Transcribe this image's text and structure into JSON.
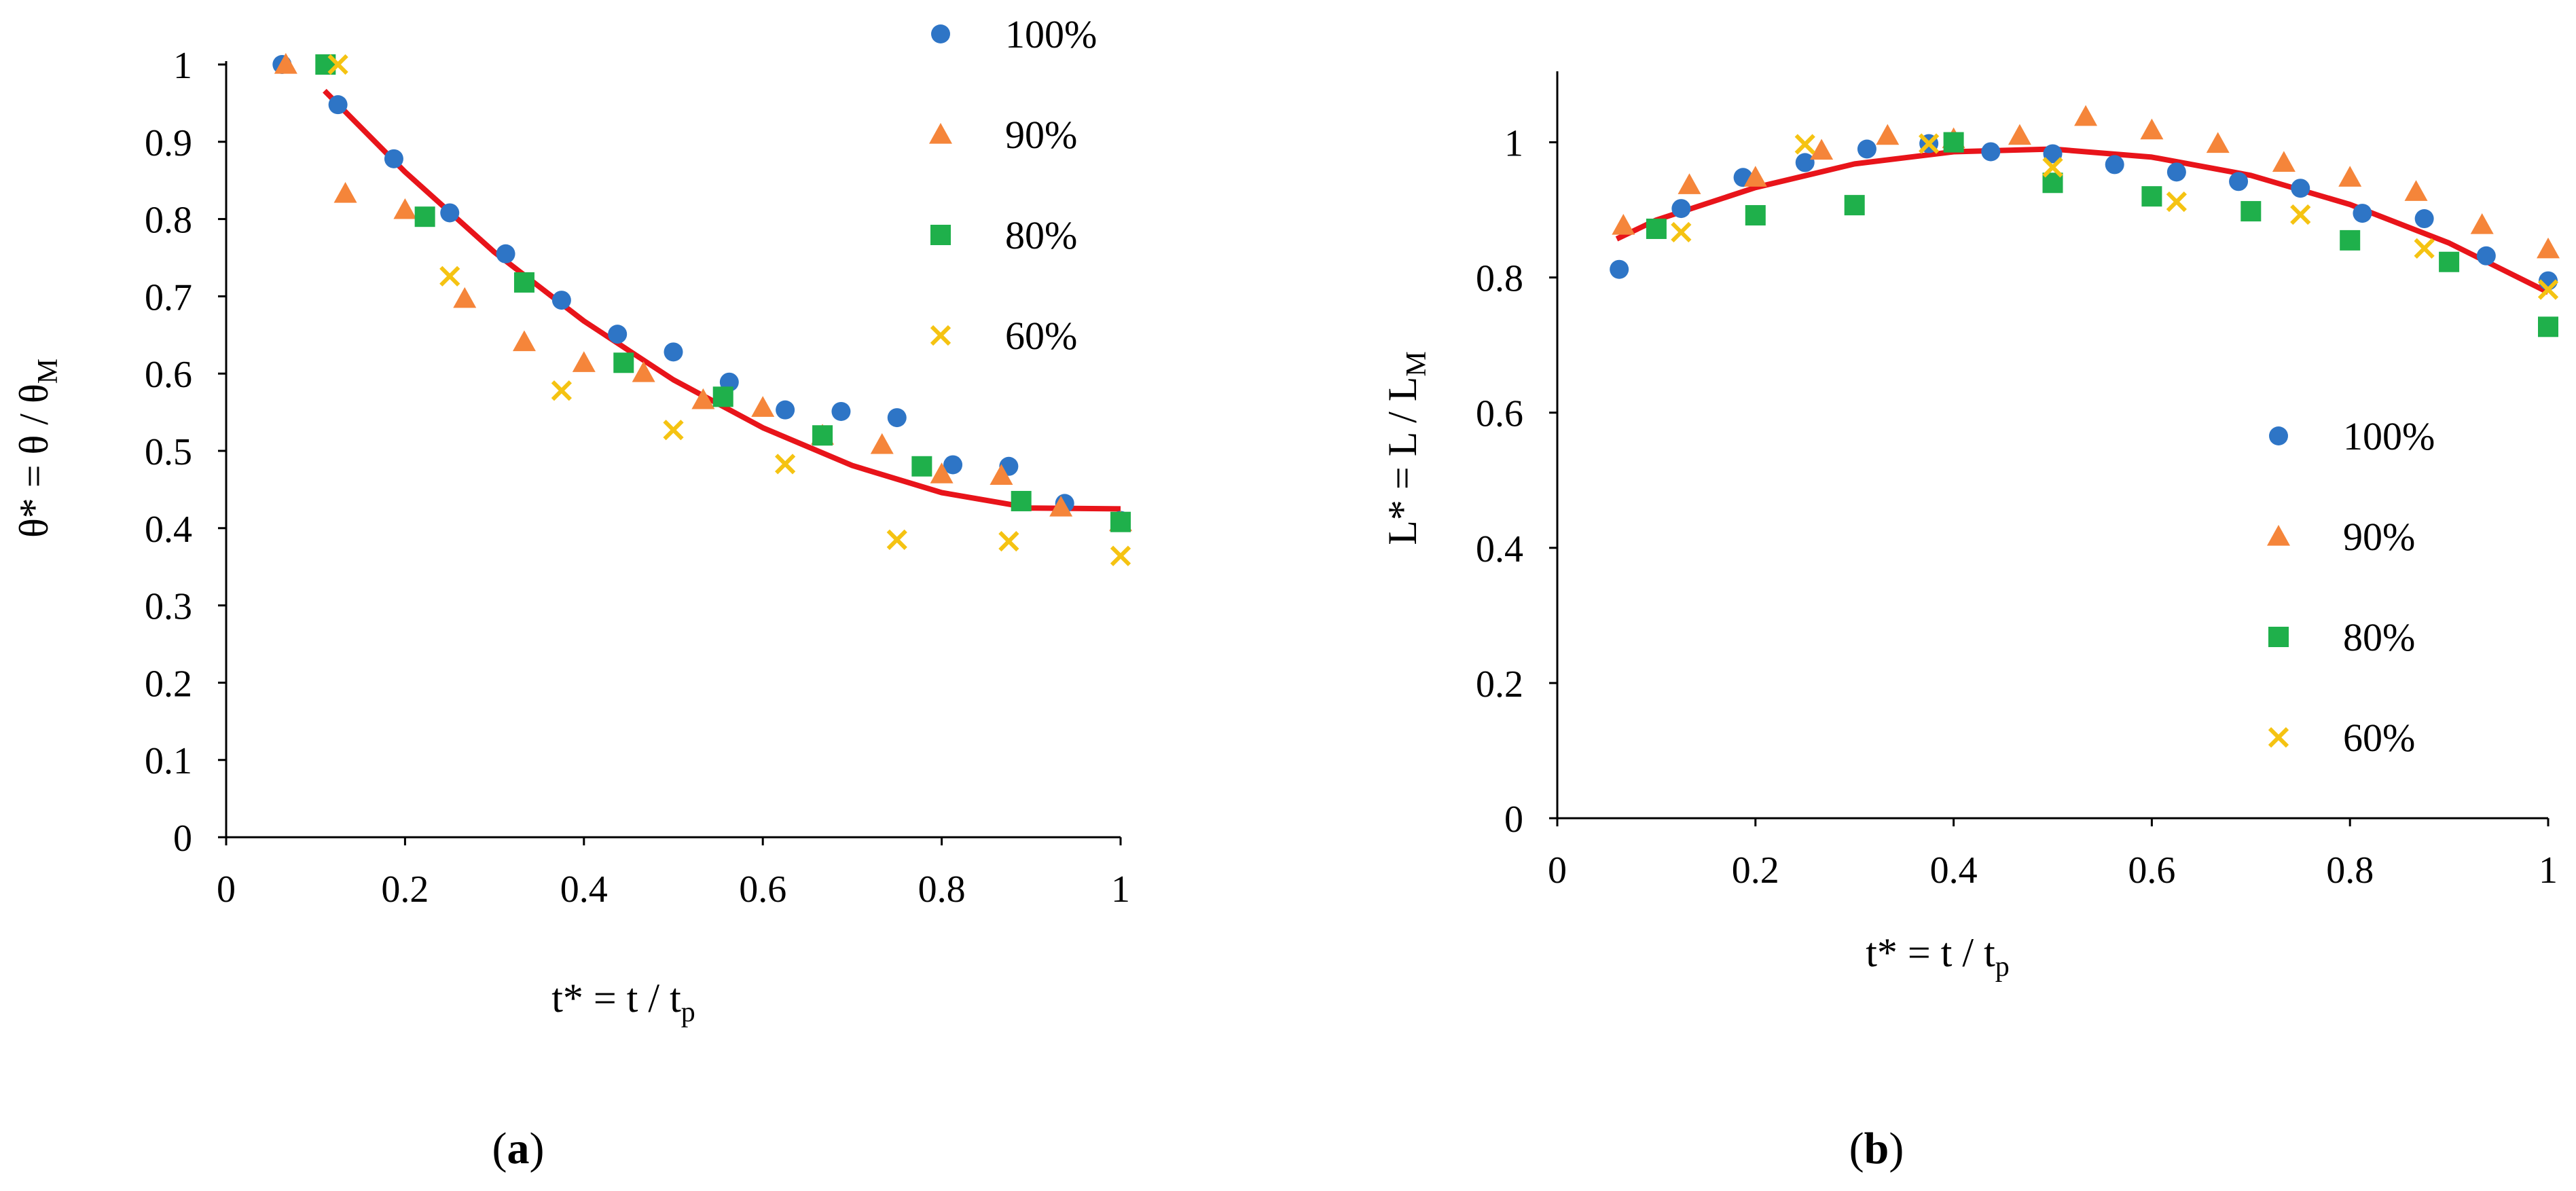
{
  "chart_data": [
    {
      "id": "a",
      "type": "scatter",
      "panel_label": "a",
      "ylabel": "θ* = θ / θ",
      "ylabel_sub": "M",
      "xlabel": "t* = t / t",
      "xlabel_sub": "p",
      "xlim": [
        0,
        1
      ],
      "ylim": [
        0,
        1
      ],
      "xticks": [
        0,
        0.2,
        0.4,
        0.6,
        0.8,
        1
      ],
      "xtick_labels": [
        "0",
        "0.2",
        "0.4",
        "0.6",
        "0.8",
        "1"
      ],
      "yticks": [
        0,
        0.1,
        0.2,
        0.3,
        0.4,
        0.5,
        0.6,
        0.7,
        0.8,
        0.9,
        1
      ],
      "ytick_labels": [
        "0",
        "0.1",
        "0.2",
        "0.3",
        "0.4",
        "0.5",
        "0.6",
        "0.7",
        "0.8",
        "0.9",
        "1"
      ],
      "series": [
        {
          "name": "100%",
          "marker": "circle",
          "color": "#2e75c6",
          "x": [
            0.0625,
            0.125,
            0.1875,
            0.25,
            0.3125,
            0.375,
            0.4375,
            0.5,
            0.5625,
            0.625,
            0.6875,
            0.75,
            0.8125,
            0.875,
            0.9375,
            1.0
          ],
          "y": [
            1.0,
            0.948,
            0.878,
            0.808,
            0.755,
            0.695,
            0.651,
            0.628,
            0.589,
            0.553,
            0.551,
            0.543,
            0.482,
            0.48,
            0.432,
            0.41
          ]
        },
        {
          "name": "90%",
          "marker": "triangle",
          "color": "#f5853a",
          "x": [
            0.0667,
            0.1333,
            0.2,
            0.2667,
            0.3333,
            0.4,
            0.4667,
            0.5333,
            0.6,
            0.6667,
            0.7333,
            0.8,
            0.8667,
            0.9333,
            1.0
          ],
          "y": [
            1.0,
            0.833,
            0.812,
            0.697,
            0.641,
            0.614,
            0.601,
            0.566,
            0.556,
            0.52,
            0.508,
            0.47,
            0.468,
            0.427,
            0.408
          ]
        },
        {
          "name": "80%",
          "marker": "square",
          "color": "#1fb04b",
          "x": [
            0.1111,
            0.2222,
            0.3333,
            0.4444,
            0.5556,
            0.6667,
            0.7778,
            0.8889,
            1.0
          ],
          "y": [
            1.0,
            0.803,
            0.718,
            0.614,
            0.57,
            0.52,
            0.48,
            0.435,
            0.408
          ]
        },
        {
          "name": "60%",
          "marker": "x",
          "color": "#f5c312",
          "x": [
            0.125,
            0.25,
            0.375,
            0.5,
            0.625,
            0.75,
            0.875,
            1.0
          ],
          "y": [
            1.0,
            0.726,
            0.578,
            0.527,
            0.483,
            0.385,
            0.383,
            0.364
          ]
        }
      ],
      "fit": {
        "name": "fit",
        "color": "#e8141a",
        "x": [
          0.11,
          0.2,
          0.3,
          0.4,
          0.5,
          0.6,
          0.7,
          0.8,
          0.9,
          1.0
        ],
        "y": [
          0.966,
          0.861,
          0.757,
          0.668,
          0.592,
          0.53,
          0.481,
          0.446,
          0.426,
          0.425
        ]
      },
      "legend_position": "top-right"
    },
    {
      "id": "b",
      "type": "scatter",
      "panel_label": "b",
      "ylabel": "L* = L / L",
      "ylabel_sub": "M",
      "xlabel": "t* = t / t",
      "xlabel_sub": "p",
      "xlim": [
        0,
        1
      ],
      "ylim": [
        0,
        1.1
      ],
      "xticks": [
        0,
        0.2,
        0.4,
        0.6,
        0.8,
        1
      ],
      "xtick_labels": [
        "0",
        "0.2",
        "0.4",
        "0.6",
        "0.8",
        "1"
      ],
      "yticks": [
        0,
        0.2,
        0.4,
        0.6,
        0.8,
        1
      ],
      "ytick_labels": [
        "0",
        "0.2",
        "0.4",
        "0.6",
        "0.8",
        "1"
      ],
      "series": [
        {
          "name": "100%",
          "marker": "circle",
          "color": "#2e75c6",
          "x": [
            0.0625,
            0.125,
            0.1875,
            0.25,
            0.3125,
            0.375,
            0.4375,
            0.5,
            0.5625,
            0.625,
            0.6875,
            0.75,
            0.8125,
            0.875,
            0.9375,
            1.0
          ],
          "y": [
            0.812,
            0.902,
            0.948,
            0.97,
            0.99,
            0.998,
            0.986,
            0.983,
            0.967,
            0.956,
            0.942,
            0.932,
            0.895,
            0.887,
            0.832,
            0.795
          ]
        },
        {
          "name": "90%",
          "marker": "triangle",
          "color": "#f5853a",
          "x": [
            0.0667,
            0.1333,
            0.2,
            0.2667,
            0.3333,
            0.4,
            0.4667,
            0.5333,
            0.6,
            0.6667,
            0.7333,
            0.8,
            0.8667,
            0.9333,
            1.0
          ],
          "y": [
            0.877,
            0.937,
            0.948,
            0.988,
            1.01,
            1.005,
            1.01,
            1.038,
            1.018,
            0.998,
            0.97,
            0.948,
            0.927,
            0.878,
            0.842
          ]
        },
        {
          "name": "80%",
          "marker": "square",
          "color": "#1fb04b",
          "x": [
            0.1,
            0.2,
            0.3,
            0.4,
            0.5,
            0.6,
            0.7,
            0.8,
            0.9,
            1.0
          ],
          "y": [
            0.872,
            0.892,
            0.907,
            1.0,
            0.94,
            0.92,
            0.898,
            0.855,
            0.823,
            0.727
          ]
        },
        {
          "name": "60%",
          "marker": "x",
          "color": "#f5c312",
          "x": [
            0.125,
            0.25,
            0.375,
            0.5,
            0.625,
            0.75,
            0.875,
            1.0
          ],
          "y": [
            0.867,
            0.997,
            0.998,
            0.963,
            0.912,
            0.893,
            0.843,
            0.782
          ]
        }
      ],
      "fit": {
        "name": "fit",
        "color": "#e8141a",
        "x": [
          0.06,
          0.1,
          0.2,
          0.3,
          0.4,
          0.5,
          0.6,
          0.7,
          0.8,
          0.9,
          1.0
        ],
        "y": [
          0.857,
          0.885,
          0.933,
          0.968,
          0.986,
          0.99,
          0.978,
          0.951,
          0.908,
          0.851,
          0.778
        ]
      },
      "legend_position": "middle-right"
    }
  ]
}
